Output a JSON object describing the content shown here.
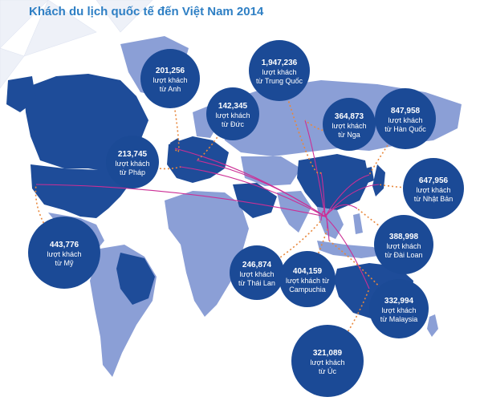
{
  "title": "Khách du lịch quốc tế đến Việt Nam 2014",
  "colors": {
    "ocean": "#ffffff",
    "land": "#8b9fd6",
    "land_dark": "#1e4c99",
    "bubble": "#1b4a96",
    "route": "#cc2e95",
    "connector": "#e8873b",
    "title": "#2e7fc4"
  },
  "markets": [
    {
      "id": "anh",
      "value": "201,256",
      "unit": "lượt khách",
      "country": "từ Anh"
    },
    {
      "id": "trung-quoc",
      "value": "1,947,236",
      "unit": "lượt khách",
      "country": "từ Trung Quốc"
    },
    {
      "id": "duc",
      "value": "142,345",
      "unit": "lượt khách",
      "country": "từ Đức"
    },
    {
      "id": "nga",
      "value": "364,873",
      "unit": "lượt khách",
      "country": "từ Nga"
    },
    {
      "id": "han-quoc",
      "value": "847,958",
      "unit": "lượt khách",
      "country": "từ Hàn Quốc"
    },
    {
      "id": "phap",
      "value": "213,745",
      "unit": "lượt khách",
      "country": "từ Pháp"
    },
    {
      "id": "nhat-ban",
      "value": "647,956",
      "unit": "lượt khách",
      "country": "từ Nhật Bản"
    },
    {
      "id": "my",
      "value": "443,776",
      "unit": "lượt khách",
      "country": "từ Mỹ"
    },
    {
      "id": "dai-loan",
      "value": "388,998",
      "unit": "lượt khách",
      "country": "từ Đài Loan"
    },
    {
      "id": "thai-lan",
      "value": "246,874",
      "unit": "lượt khách",
      "country": "từ Thái Lan"
    },
    {
      "id": "campuchia",
      "value": "404,159",
      "unit": "lượt khách từ",
      "country": "Campuchia"
    },
    {
      "id": "malaysia",
      "value": "332,994",
      "unit": "lượt khách",
      "country": "từ Malaysia"
    },
    {
      "id": "uc",
      "value": "321,089",
      "unit": "lượt khách",
      "country": "từ Úc"
    }
  ]
}
